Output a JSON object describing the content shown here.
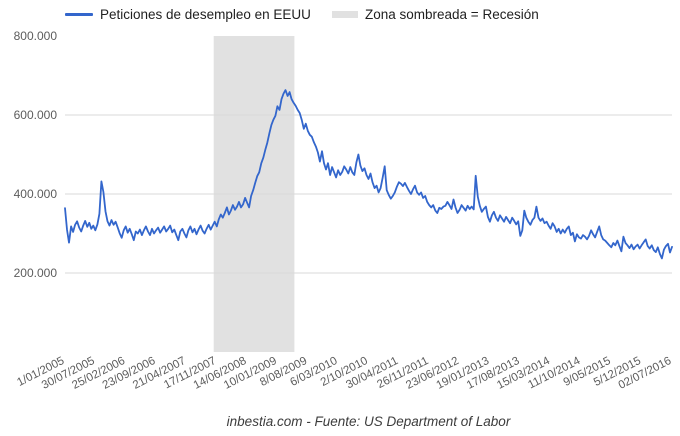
{
  "legend": {
    "series_label": "Peticiones de desempleo en EEUU",
    "band_label": "Zona sombreada = Recesión"
  },
  "footer_text": "inbestia.com - Fuente: US Department of Labor",
  "colors": {
    "line": "#3366cc",
    "band": "#e1e1e1",
    "gridline": "#d9d9d9",
    "tick_text": "#5c5c5c"
  },
  "chart_data": {
    "type": "line",
    "title": "",
    "legend_position": "top",
    "grid": true,
    "ylim": [
      0,
      800000
    ],
    "y_ticks": [
      {
        "value": 200000,
        "label": "200.000",
        "gridline": true
      },
      {
        "value": 400000,
        "label": "400.000",
        "gridline": true
      },
      {
        "value": 600000,
        "label": "600.000",
        "gridline": true
      },
      {
        "value": 800000,
        "label": "800.000",
        "gridline": false
      }
    ],
    "x_tick_labels": [
      "1/01/2005",
      "30/07/2005",
      "25/02/2006",
      "23/09/2006",
      "21/04/2007",
      "17/11/2007",
      "14/06/2008",
      "10/01/2009",
      "8/08/2009",
      "6/03/2010",
      "2/10/2010",
      "30/04/2011",
      "26/11/2011",
      "23/06/2012",
      "19/01/2013",
      "17/08/2013",
      "15/03/2014",
      "11/10/2014",
      "9/05/2015",
      "5/12/2015",
      "02/07/2016"
    ],
    "recession_band": {
      "label": "Zona sombreada = Recesión",
      "color": "#e1e1e1",
      "x_start_fraction": 0.245,
      "x_end_fraction": 0.378
    },
    "series": [
      {
        "name": "Peticiones de desempleo en EEUU",
        "color": "#3366cc",
        "sampling": "biweekly points, 1/01/2005 to 02/07/2016",
        "values": [
          364000,
          310000,
          277000,
          318000,
          304000,
          322000,
          331000,
          315000,
          305000,
          320000,
          332000,
          317000,
          327000,
          312000,
          320000,
          308000,
          323000,
          350000,
          432000,
          405000,
          356000,
          331000,
          320000,
          334000,
          322000,
          330000,
          316000,
          301000,
          289000,
          308000,
          318000,
          302000,
          312000,
          298000,
          283000,
          305000,
          300000,
          310000,
          296000,
          308000,
          318000,
          305000,
          296000,
          312000,
          300000,
          308000,
          315000,
          302000,
          310000,
          318000,
          305000,
          312000,
          320000,
          303000,
          310000,
          296000,
          283000,
          305000,
          312000,
          300000,
          290000,
          308000,
          318000,
          303000,
          312000,
          298000,
          310000,
          320000,
          307000,
          300000,
          312000,
          322000,
          310000,
          320000,
          330000,
          318000,
          336000,
          348000,
          340000,
          352000,
          366000,
          348000,
          358000,
          372000,
          360000,
          368000,
          380000,
          366000,
          374000,
          390000,
          378000,
          366000,
          395000,
          410000,
          428000,
          445000,
          455000,
          478000,
          492000,
          512000,
          530000,
          554000,
          575000,
          588000,
          598000,
          622000,
          613000,
          640000,
          654000,
          663000,
          648000,
          658000,
          640000,
          631000,
          623000,
          613000,
          605000,
          588000,
          565000,
          578000,
          560000,
          550000,
          545000,
          531000,
          520000,
          505000,
          482000,
          508000,
          478000,
          462000,
          478000,
          448000,
          468000,
          455000,
          442000,
          460000,
          448000,
          456000,
          470000,
          462000,
          452000,
          468000,
          455000,
          448000,
          480000,
          500000,
          472000,
          458000,
          465000,
          448000,
          438000,
          452000,
          430000,
          415000,
          421000,
          404000,
          415000,
          442000,
          470000,
          410000,
          398000,
          388000,
          395000,
          404000,
          418000,
          430000,
          426000,
          420000,
          428000,
          418000,
          408000,
          400000,
          412000,
          421000,
          404000,
          398000,
          404000,
          390000,
          395000,
          380000,
          372000,
          366000,
          372000,
          358000,
          352000,
          365000,
          362000,
          368000,
          370000,
          380000,
          372000,
          362000,
          386000,
          366000,
          352000,
          360000,
          372000,
          365000,
          358000,
          370000,
          362000,
          368000,
          361000,
          446000,
          393000,
          370000,
          355000,
          362000,
          368000,
          342000,
          330000,
          346000,
          355000,
          340000,
          332000,
          346000,
          338000,
          330000,
          342000,
          334000,
          326000,
          340000,
          332000,
          323000,
          331000,
          294000,
          308000,
          358000,
          340000,
          330000,
          322000,
          334000,
          340000,
          368000,
          340000,
          332000,
          338000,
          326000,
          330000,
          320000,
          312000,
          326000,
          318000,
          304000,
          312000,
          300000,
          310000,
          302000,
          312000,
          318000,
          296000,
          302000,
          280000,
          298000,
          290000,
          287000,
          296000,
          292000,
          285000,
          294000,
          308000,
          298000,
          290000,
          304000,
          318000,
          296000,
          285000,
          282000,
          276000,
          270000,
          265000,
          276000,
          270000,
          282000,
          268000,
          255000,
          292000,
          276000,
          270000,
          263000,
          272000,
          260000,
          267000,
          272000,
          262000,
          270000,
          278000,
          285000,
          268000,
          262000,
          270000,
          258000,
          253000,
          265000,
          248000,
          237000,
          259000,
          268000,
          274000,
          252000,
          266000
        ]
      }
    ]
  }
}
